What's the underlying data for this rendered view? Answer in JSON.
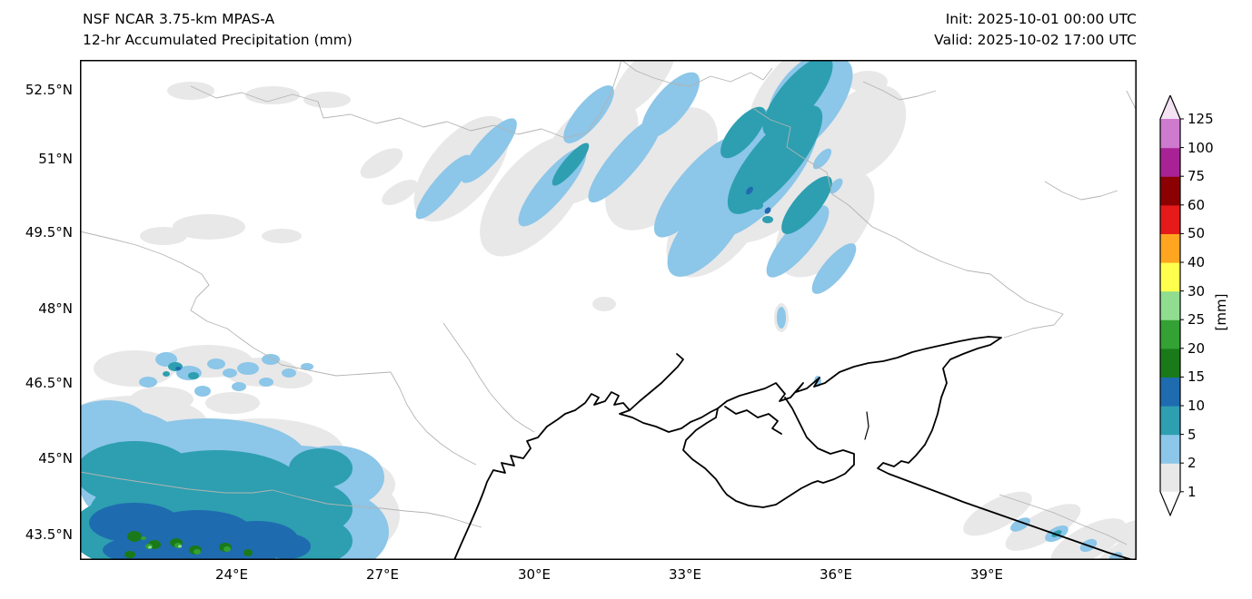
{
  "figure": {
    "title_line1": "NSF NCAR 3.75-km MPAS-A",
    "title_line2": "12-hr Accumulated Precipitation (mm)",
    "init_text": "Init: 2025-10-01 00:00 UTC",
    "valid_text": "Valid: 2025-10-02 17:00 UTC"
  },
  "axes": {
    "lat_ticks": [
      "52.5°N",
      "51°N",
      "49.5°N",
      "48°N",
      "46.5°N",
      "45°N",
      "43.5°N"
    ],
    "lon_ticks": [
      "24°E",
      "27°E",
      "30°E",
      "33°E",
      "36°E",
      "39°E"
    ]
  },
  "colorbar": {
    "unit_label": "[mm]",
    "tick_labels": [
      "1",
      "2",
      "5",
      "10",
      "15",
      "20",
      "25",
      "30",
      "40",
      "50",
      "60",
      "75",
      "100",
      "125"
    ],
    "segment_colors": [
      "#e8e8e8",
      "#8cc6e8",
      "#2d9fb0",
      "#1f6bb0",
      "#1a7a1a",
      "#33a133",
      "#90dd90",
      "#ffff4d",
      "#ffa520",
      "#e51a1a",
      "#8b0000",
      "#a82296",
      "#ce7ace"
    ],
    "under_color": "#ffffff",
    "over_color": "#f3e3f3",
    "outline_color": "#000000"
  },
  "map": {
    "coastline_color": "#000000",
    "border_color": "#b3b3b3",
    "background_color": "#ffffff",
    "extent": {
      "lon_min_e": 21,
      "lon_max_e": 42,
      "lat_min_n": 43.0,
      "lat_max_n": 53.2
    },
    "precip_features": [
      {
        "region": "Diagonal NE-SW rain bands over NE Ukraine / W Russia (29-36°E, 49.5-53°N)",
        "range_mm": "1-15"
      },
      {
        "region": "Heavy precipitation over Carpathians / Romania (21-26.5°E, 43-45.5°N)",
        "range_mm": "1-30"
      },
      {
        "region": "Scattered light cells over Transylvania (21.5-26°E, 46-47°N)",
        "range_mm": "1-15"
      },
      {
        "region": "Light precipitation along Caucasus coast (38.5-42°E, 43-44.5°N)",
        "range_mm": "1-5"
      }
    ]
  }
}
